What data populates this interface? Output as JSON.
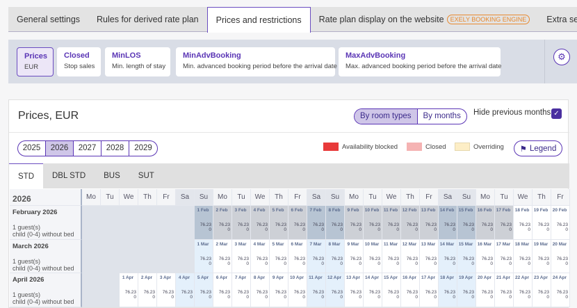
{
  "tabs": [
    {
      "label": "General settings"
    },
    {
      "label": "Rules for derived rate plan"
    },
    {
      "label": "Prices and restrictions",
      "active": true
    },
    {
      "label": "Rate plan display on the website",
      "badge": "EXELY BOOKING ENGINE"
    },
    {
      "label": "Extra services"
    }
  ],
  "filters": [
    {
      "title": "Prices",
      "sub": "EUR",
      "active": true
    },
    {
      "title": "Closed",
      "sub": "Stop sales"
    },
    {
      "title": "MinLOS",
      "sub": "Min. length of stay"
    },
    {
      "title": "MinAdvBooking",
      "sub": "Min. advanced booking period before the arrival date"
    },
    {
      "title": "MaxAdvBooking",
      "sub": "Max. advanced booking period before the arrival date"
    }
  ],
  "settings_icon": "gear-icon",
  "main": {
    "title": "Prices, EUR",
    "view_toggle": [
      "By room types",
      "By months"
    ],
    "view_selected": "By room types",
    "hide_previous_label": "Hide previous months",
    "hide_previous_checked": true,
    "years": [
      "2025",
      "2026",
      "2027",
      "2028",
      "2029"
    ],
    "year_selected": "2026",
    "legend": [
      {
        "label": "Availability blocked",
        "color": "#e83a3a"
      },
      {
        "label": "Closed",
        "color": "#f5b3b3"
      },
      {
        "label": "Overriding",
        "color": "#fdeec6"
      }
    ],
    "legend_button": "Legend",
    "room_tabs": [
      "STD",
      "DBL STD",
      "BUS",
      "SUT"
    ],
    "room_selected": "STD"
  },
  "grid": {
    "year": "2026",
    "weekdays": [
      "Mo",
      "Tu",
      "We",
      "Th",
      "Fr",
      "Sa",
      "Su",
      "Mo",
      "Tu",
      "We",
      "Th",
      "Fr",
      "Sa",
      "Su",
      "Mo",
      "Tu",
      "We",
      "Th",
      "Fr",
      "Sa",
      "Su",
      "Mo",
      "Tu",
      "We",
      "Th",
      "Fr"
    ],
    "row_label_1": "1 guest(s)",
    "row_label_2": "child (0-4) without bed",
    "price": "76.23",
    "child_price": "0",
    "months": [
      {
        "label": "February 2026",
        "abbr": "Feb",
        "start_weekday_index": 6,
        "first": 1,
        "last": 20,
        "past_until": 17
      },
      {
        "label": "March 2026",
        "abbr": "Mar",
        "start_weekday_index": 6,
        "first": 1,
        "last": 20,
        "past_until": 0
      },
      {
        "label": "April 2026",
        "abbr": "Apr",
        "start_weekday_index": 2,
        "first": 1,
        "last": 24,
        "past_until": 0
      }
    ],
    "colors": {
      "past": "#cdd0d6",
      "past_weekend": "#b7c4d3",
      "weekend": "#e4f0fb",
      "empty": "#dfe3ea",
      "day": "#ffffff"
    }
  }
}
